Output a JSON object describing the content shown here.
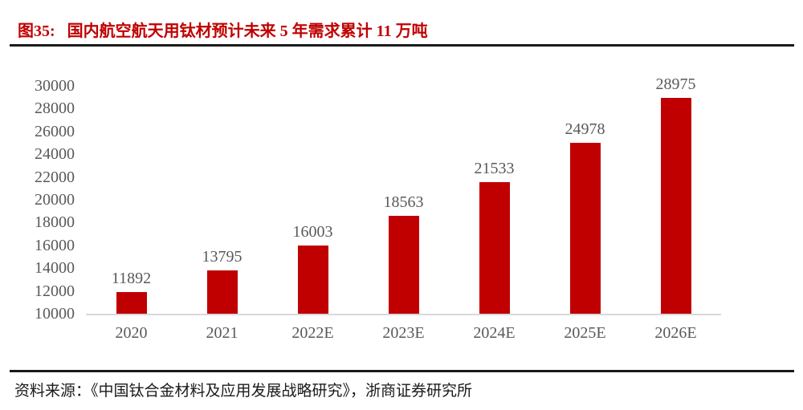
{
  "header": {
    "figure_label": "图35:",
    "title": "国内航空航天用钛材预计未来 5 年需求累计 11 万吨"
  },
  "chart_data": {
    "type": "bar",
    "title": "国内航空航天用钛材预计未来 5 年需求累计 11 万吨",
    "categories": [
      "2020",
      "2021",
      "2022E",
      "2023E",
      "2024E",
      "2025E",
      "2026E"
    ],
    "values": [
      11892,
      13795,
      16003,
      18563,
      21533,
      24978,
      28975
    ],
    "xlabel": "",
    "ylabel": "",
    "ylim": [
      10000,
      30000
    ],
    "ytick_step": 2000,
    "yticks": [
      10000,
      12000,
      14000,
      16000,
      18000,
      20000,
      22000,
      24000,
      26000,
      28000,
      30000
    ],
    "grid": false,
    "legend": "none",
    "data_labels": true,
    "bar_color": "#C00000",
    "label_color": "#595959",
    "axis_line_color": "#D9D9D9"
  },
  "footer": {
    "source": "资料来源：《中国钛合金材料及应用发展战略研究》，浙商证券研究所"
  },
  "colors": {
    "title_red": "#C00000",
    "bar_red": "#C00000",
    "label_gray": "#595959",
    "axis_gray": "#D9D9D9",
    "rule_black": "#1A1A1A",
    "background": "#FFFFFF"
  }
}
